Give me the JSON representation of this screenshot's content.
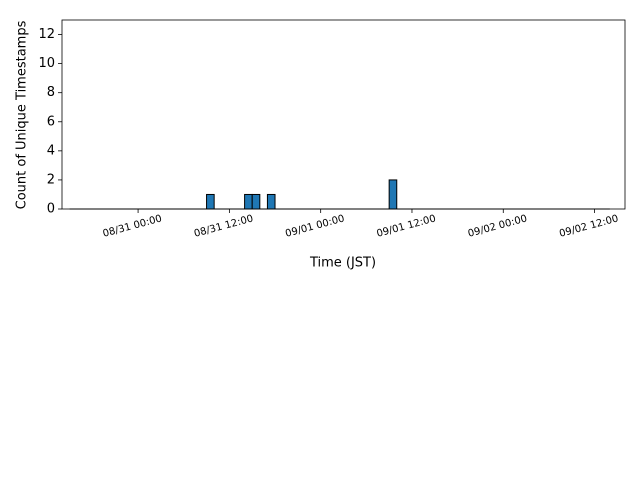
{
  "chart_data": {
    "type": "histogram",
    "xlabel": "Time (JST)",
    "ylabel": "Count of Unique Timestamps",
    "bins": [
      -9,
      -8,
      -7,
      -6,
      -5,
      -4,
      -3,
      -2,
      -1,
      0,
      1,
      2,
      3,
      4,
      5,
      6,
      7,
      8,
      9,
      10,
      11,
      12,
      13,
      14,
      15,
      16,
      17,
      18,
      19,
      20,
      21,
      22,
      23,
      24,
      25,
      26,
      27,
      28,
      29,
      30,
      31,
      32,
      33,
      34,
      35,
      36,
      37,
      38,
      39,
      40,
      41,
      42,
      43,
      44,
      45,
      46,
      47,
      48,
      49,
      50,
      51,
      52,
      53,
      54,
      55,
      56,
      57,
      58,
      59,
      60,
      61,
      62
    ],
    "counts": [
      0,
      0,
      0,
      0,
      0,
      0,
      0,
      0,
      0,
      0,
      0,
      0,
      0,
      0,
      0,
      0,
      0,
      0,
      1,
      0,
      0,
      0,
      0,
      1,
      1,
      0,
      1,
      0,
      0,
      0,
      0,
      0,
      0,
      0,
      0,
      0,
      0,
      0,
      0,
      0,
      0,
      0,
      2,
      0,
      0,
      0,
      0,
      0,
      0,
      0,
      0,
      0,
      0,
      0,
      0,
      0,
      0,
      0,
      0,
      0,
      0,
      0,
      0,
      0,
      0,
      0,
      0,
      0,
      0,
      0,
      0
    ],
    "color": "#1f77b4",
    "edgecolor": "#000000",
    "xlim": [
      -10,
      64
    ],
    "ylim": [
      0,
      13
    ],
    "xticks": [
      {
        "value": 0,
        "label": "08/31 00:00"
      },
      {
        "value": 12,
        "label": "08/31 12:00"
      },
      {
        "value": 24,
        "label": "09/01 00:00"
      },
      {
        "value": 36,
        "label": "09/01 12:00"
      },
      {
        "value": 48,
        "label": "09/02 00:00"
      },
      {
        "value": 60,
        "label": "09/02 12:00"
      }
    ],
    "yticks": [
      0,
      2,
      4,
      6,
      8,
      10,
      12
    ]
  }
}
